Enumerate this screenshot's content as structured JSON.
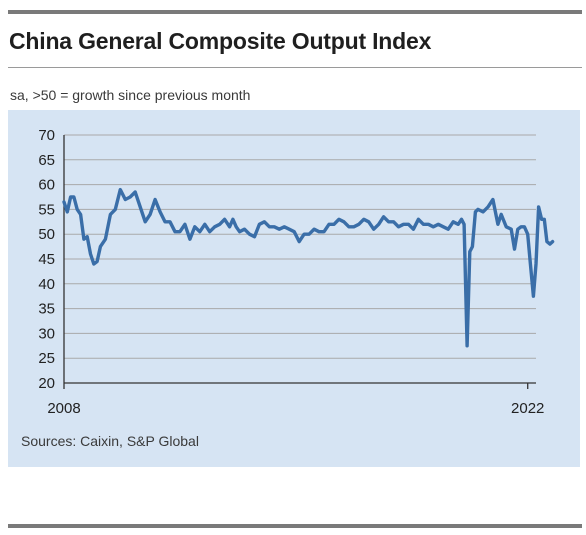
{
  "title": "China General Composite Output Index",
  "subtitle": "sa, >50 = growth since previous month",
  "source": "Sources: Caixin, S&P Global",
  "colors": {
    "line": "#3a6ea8",
    "panel": "#d6e4f3",
    "grid": "#a9a9a9",
    "axis": "#333333"
  },
  "chart_data": {
    "type": "line",
    "title": "China General Composite Output Index",
    "subtitle": "sa, >50 = growth since previous month",
    "ylim": [
      20,
      70
    ],
    "yticks": [
      "70",
      "65",
      "60",
      "55",
      "50",
      "45",
      "40",
      "35",
      "30",
      "25",
      "20"
    ],
    "xlim": [
      2008,
      2022.25
    ],
    "xticks": [
      {
        "value": 2008,
        "label": "2008"
      },
      {
        "value": 2022,
        "label": "2022"
      }
    ],
    "grid": true,
    "series": [
      {
        "name": "",
        "x": [
          2008.0,
          2008.1,
          2008.2,
          2008.3,
          2008.4,
          2008.5,
          2008.6,
          2008.7,
          2008.8,
          2008.9,
          2009.0,
          2009.1,
          2009.25,
          2009.4,
          2009.55,
          2009.7,
          2009.85,
          2010.0,
          2010.15,
          2010.3,
          2010.45,
          2010.6,
          2010.75,
          2010.9,
          2011.05,
          2011.2,
          2011.35,
          2011.5,
          2011.65,
          2011.8,
          2011.95,
          2012.1,
          2012.25,
          2012.4,
          2012.55,
          2012.7,
          2012.85,
          2013.0,
          2013.1,
          2013.2,
          2013.3,
          2013.45,
          2013.6,
          2013.75,
          2013.9,
          2014.05,
          2014.2,
          2014.35,
          2014.5,
          2014.65,
          2014.8,
          2014.95,
          2015.1,
          2015.25,
          2015.4,
          2015.55,
          2015.7,
          2015.85,
          2016.0,
          2016.15,
          2016.3,
          2016.45,
          2016.6,
          2016.75,
          2016.9,
          2017.05,
          2017.2,
          2017.35,
          2017.5,
          2017.65,
          2017.8,
          2017.95,
          2018.1,
          2018.25,
          2018.4,
          2018.55,
          2018.7,
          2018.85,
          2019.0,
          2019.15,
          2019.3,
          2019.45,
          2019.6,
          2019.75,
          2019.9,
          2020.0,
          2020.08,
          2020.17,
          2020.25,
          2020.33,
          2020.42,
          2020.5,
          2020.65,
          2020.8,
          2020.95,
          2021.1,
          2021.2,
          2021.35,
          2021.5,
          2021.6,
          2021.7,
          2021.8,
          2021.9,
          2022.0,
          2022.08,
          2022.17,
          2022.25,
          2022.33,
          2022.42,
          2022.5,
          2022.58,
          2022.67,
          2022.75
        ],
        "values": [
          56.5,
          54.5,
          57.5,
          57.5,
          55.0,
          54.0,
          49.0,
          49.5,
          46.0,
          44.0,
          44.5,
          47.5,
          49.0,
          54.0,
          55.0,
          59.0,
          57.0,
          57.5,
          58.5,
          55.5,
          52.5,
          54.0,
          57.0,
          54.5,
          52.5,
          52.5,
          50.5,
          50.5,
          52.0,
          49.0,
          51.5,
          50.5,
          52.0,
          50.5,
          51.5,
          52.0,
          53.0,
          51.5,
          53.0,
          51.5,
          50.5,
          51.0,
          50.0,
          49.5,
          52.0,
          52.5,
          51.5,
          51.5,
          51.0,
          51.5,
          51.0,
          50.5,
          48.5,
          50.0,
          50.0,
          51.0,
          50.5,
          50.5,
          52.0,
          52.0,
          53.0,
          52.5,
          51.5,
          51.5,
          52.0,
          53.0,
          52.5,
          51.0,
          52.0,
          53.5,
          52.5,
          52.5,
          51.5,
          52.0,
          52.0,
          51.0,
          53.0,
          52.0,
          52.0,
          51.5,
          52.0,
          51.5,
          51.0,
          52.5,
          52.0,
          53.0,
          52.0,
          27.5,
          46.5,
          47.5,
          54.5,
          55.0,
          54.5,
          55.5,
          57.0,
          52.0,
          54.0,
          51.5,
          51.0,
          47.0,
          51.0,
          51.5,
          51.5,
          50.0,
          44.0,
          37.5,
          44.0,
          55.5,
          53.0,
          53.0,
          48.5,
          48.0,
          48.5
        ]
      }
    ]
  }
}
